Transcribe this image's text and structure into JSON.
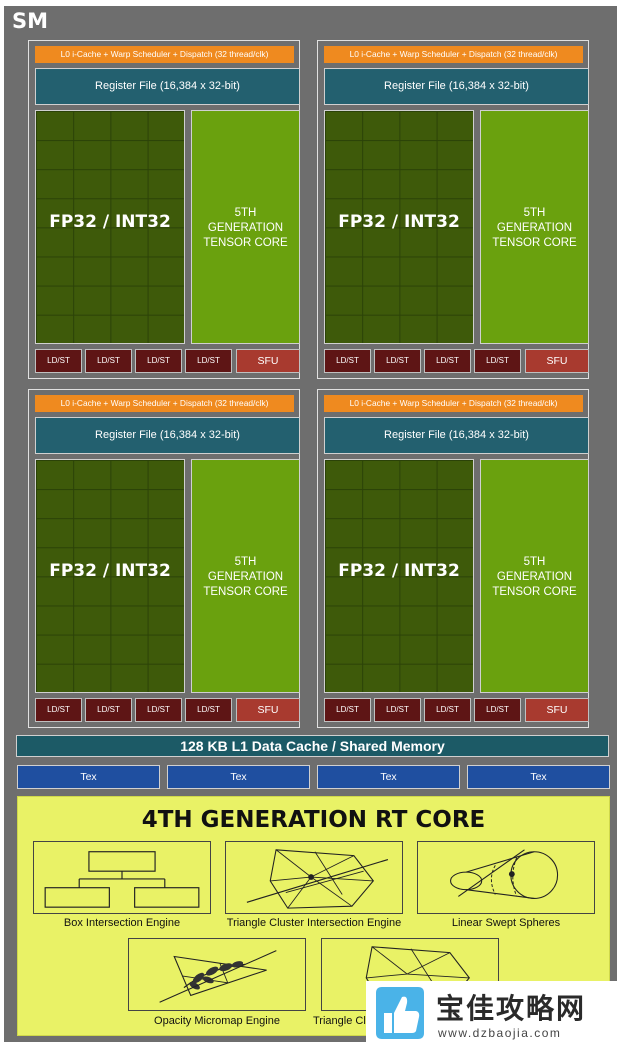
{
  "sm_label": "SM",
  "quadrant": {
    "scheduler": "L0 i-Cache + Warp Scheduler + Dispatch (32 thread/clk)",
    "register_file": "Register File (16,384 x 32-bit)",
    "core_label": "FP32 / INT32",
    "tensor_lines": [
      "5TH",
      "GENERATION",
      "TENSOR CORE"
    ],
    "ldst": "LD/ST",
    "sfu": "SFU"
  },
  "l1_cache": "128 KB L1 Data Cache / Shared Memory",
  "tex": [
    "Tex",
    "Tex",
    "Tex",
    "Tex"
  ],
  "rt_core": {
    "title": "4TH GENERATION RT CORE",
    "engines": [
      "Box Intersection Engine",
      "Triangle Cluster Intersection Engine",
      "Linear Swept Spheres",
      "Opacity Micromap Engine",
      "Triangle Cl"
    ]
  },
  "watermark": {
    "text": "宝佳攻略网",
    "url": "www.dzbaojia.com"
  },
  "colors": {
    "sm_bg": "#6e6e6e",
    "scheduler": "#ef8a1f",
    "register_file": "#23606f",
    "fp32_grid": "#3e5a0a",
    "tensor": "#6aa10e",
    "ldst": "#5e1515",
    "sfu": "#a83a2f",
    "l1": "#1c5a66",
    "tex": "#1f4fa0",
    "rt_core": "#e9f266"
  }
}
